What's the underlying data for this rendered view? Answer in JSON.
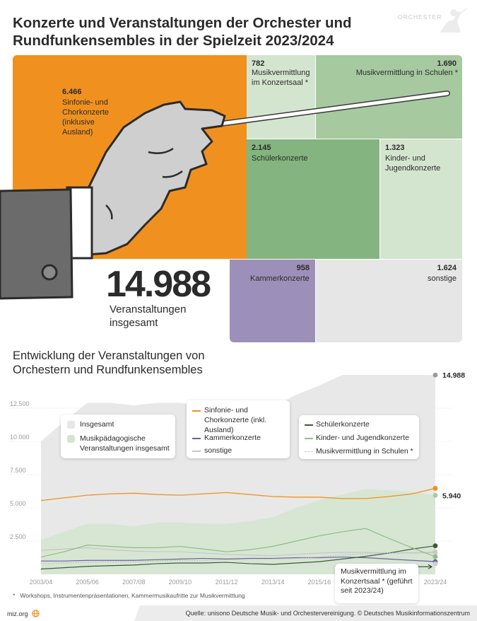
{
  "title": "Konzerte und Veranstaltungen der Orchester und Rundfunkensembles in der Spielzeit 2023/2024",
  "logo_text": "ORCHESTER",
  "colors": {
    "orange": "#f0911f",
    "green_dark": "#84b47f",
    "green_mid": "#a6c99f",
    "green_light": "#d4e5cf",
    "purple": "#9c8fb9",
    "grey_light": "#e6e6e6",
    "grey_area": "#e8e8e8",
    "line_dark": "#3a5b3a",
    "line_green": "#8dbf84",
    "line_grey": "#c6c6c6",
    "line_purple": "#6e5fa6",
    "line_dotted": "#b9b9b9"
  },
  "tiles": [
    {
      "value": "6.466",
      "label": "Sinfonie- und Chorkonzerte (inklusive Ausland)"
    },
    {
      "value": "782",
      "label": "Musikvermittlung im Konzertsaal *"
    },
    {
      "value": "1.690",
      "label": "Musikvermittlung in Schulen *"
    },
    {
      "value": "2.145",
      "label": "Schülerkonzerte"
    },
    {
      "value": "1.323",
      "label": "Kinder- und Jugendkonzerte"
    },
    {
      "value": "958",
      "label": "Kammerkonzerte"
    },
    {
      "value": "1.624",
      "label": "sonstige"
    }
  ],
  "total": {
    "value": "14.988",
    "label": "Veranstaltungen insgesamt"
  },
  "subtitle": "Entwicklung der Veranstaltungen von Orchestern und Rundfunkensembles",
  "legend": {
    "box1": [
      "Insgesamt",
      "Musikpädagogische Veranstaltungen insgesamt"
    ],
    "box2": [
      "Sinfonie- und Chorkonzerte (inkl. Ausland)",
      "Kammerkonzerte",
      "sonstige"
    ],
    "box3": [
      "Schülerkonzerte",
      "Kinder- und Jugendkonzerte",
      "Musikvermittlung in Schulen *"
    ]
  },
  "chart_data": {
    "type": "line",
    "x": [
      "2003/04",
      "2004/05",
      "2005/06",
      "2006/07",
      "2007/08",
      "2008/09",
      "2009/10",
      "2010/11",
      "2011/12",
      "2012/13",
      "2013/14",
      "2014/15",
      "2015/16",
      "2016/17",
      "2017/18",
      "2018/19",
      "2019/20",
      "2023/24"
    ],
    "x_tick_labels": [
      "2003/04",
      "2005/06",
      "2007/08",
      "2009/10",
      "2011/12",
      "2013/14",
      "2015/16",
      "2017/18",
      "2023/24"
    ],
    "ylim": [
      0,
      15000
    ],
    "y_ticks": [
      "2.500",
      "5.000",
      "7.500",
      "10.000",
      "12.500"
    ],
    "series": [
      {
        "name": "Insgesamt",
        "kind": "area",
        "values": [
          10000,
          11500,
          12900,
          12900,
          12700,
          12900,
          12900,
          12700,
          12800,
          12600,
          12600,
          13500,
          14200,
          15000,
          15000,
          15000,
          15000,
          14988
        ],
        "end_label": "14.988"
      },
      {
        "name": "Musikpädagogische Veranstaltungen insgesamt",
        "kind": "area",
        "values": [
          2600,
          3200,
          3800,
          3800,
          3600,
          3900,
          3900,
          3800,
          3800,
          4000,
          4300,
          5000,
          5600,
          6000,
          6400,
          6300,
          6200,
          5940
        ],
        "end_label": "5.940"
      },
      {
        "name": "Sinfonie- und Chorkonzerte (inkl. Ausland)",
        "values": [
          5550,
          5750,
          5950,
          6050,
          6100,
          6000,
          5950,
          6050,
          6150,
          6000,
          5850,
          5800,
          5800,
          5700,
          5700,
          5850,
          6050,
          6466
        ]
      },
      {
        "name": "Kammerkonzerte",
        "values": [
          1000,
          1000,
          1050,
          1050,
          1050,
          1100,
          1150,
          1200,
          1150,
          1200,
          1200,
          1250,
          1250,
          1300,
          1250,
          1150,
          1050,
          958
        ]
      },
      {
        "name": "sonstige",
        "values": [
          1800,
          1900,
          2000,
          1850,
          1750,
          1700,
          1700,
          1600,
          1500,
          1450,
          1400,
          1500,
          1600,
          1650,
          1650,
          1600,
          1600,
          1624
        ]
      },
      {
        "name": "Schülerkonzerte",
        "values": [
          400,
          500,
          600,
          650,
          700,
          800,
          850,
          850,
          900,
          800,
          750,
          850,
          950,
          1150,
          1350,
          1600,
          1900,
          2145
        ]
      },
      {
        "name": "Kinder- und Jugendkonzerte",
        "values": [
          1300,
          1700,
          2200,
          2100,
          2000,
          2000,
          2100,
          1900,
          1700,
          1850,
          2100,
          2500,
          2900,
          3200,
          3450,
          2700,
          2000,
          1323
        ]
      },
      {
        "name": "Musikvermittlung in Schulen *",
        "values": [
          800,
          850,
          900,
          950,
          950,
          1000,
          1050,
          1050,
          1100,
          1100,
          1150,
          1200,
          1300,
          1450,
          1550,
          1600,
          1650,
          1690
        ]
      },
      {
        "name": "Musikvermittlung im Konzertsaal * (geführt seit 2023/24)",
        "values": [
          null,
          null,
          null,
          null,
          null,
          null,
          null,
          null,
          null,
          null,
          null,
          null,
          null,
          null,
          null,
          null,
          null,
          782
        ]
      }
    ]
  },
  "note": "Musikvermittlung im Konzertsaal * (geführt seit 2023/24)",
  "footnote_mark": "*",
  "footnote": "Workshops, Instrumentenpräsentationen, Kammermusikaufritte zur Musikvermittlung",
  "site": "miz.org",
  "source": "Quelle: unisono Deutsche Musik- und Orchestervereinigung. © Deutsches Musikinformationszentrum"
}
